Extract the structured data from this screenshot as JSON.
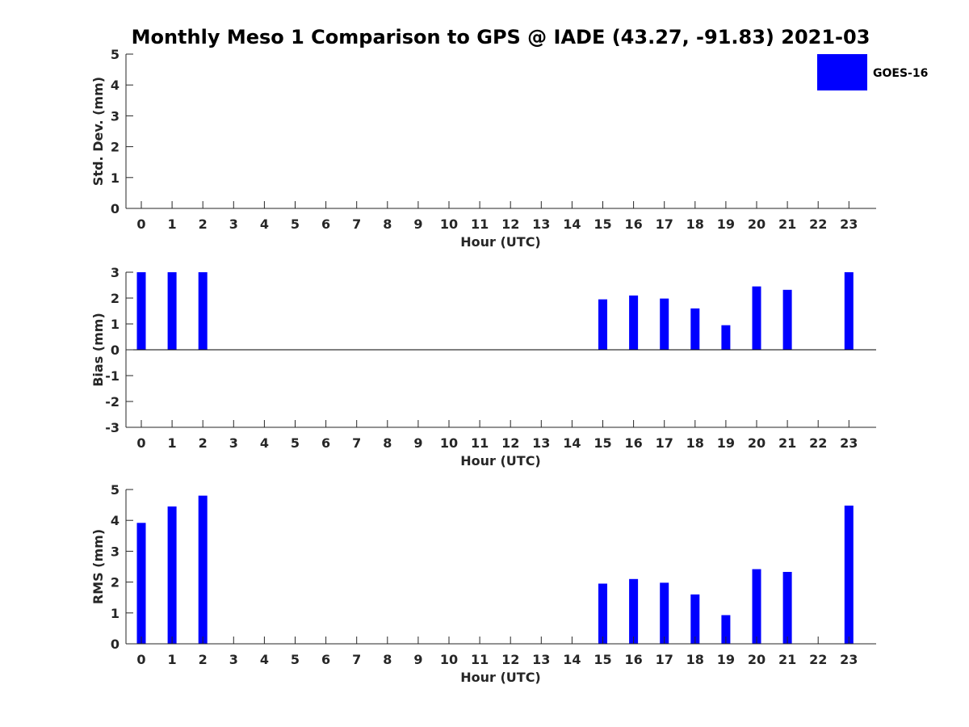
{
  "figure": {
    "title": "Monthly Meso 1 Comparison to GPS @ IADE (43.27, -91.83) 2021-03"
  },
  "legend": {
    "label": "GOES-16",
    "color": "#0000ff",
    "placement": "top-right"
  },
  "chart_data": [
    {
      "type": "bar",
      "ylabel": "Std. Dev. (mm)",
      "xlabel": "Hour (UTC)",
      "ylim": [
        0,
        5
      ],
      "yticks": [
        "0",
        "1",
        "2",
        "3",
        "4",
        "5"
      ],
      "categories": [
        "0",
        "1",
        "2",
        "3",
        "4",
        "5",
        "6",
        "7",
        "8",
        "9",
        "10",
        "11",
        "12",
        "13",
        "14",
        "15",
        "16",
        "17",
        "18",
        "19",
        "20",
        "21",
        "22",
        "23"
      ],
      "series": [
        {
          "name": "GOES-16",
          "color": "#0000ff",
          "values": [
            null,
            null,
            null,
            null,
            null,
            null,
            null,
            null,
            null,
            null,
            null,
            null,
            null,
            null,
            null,
            null,
            null,
            null,
            null,
            null,
            null,
            null,
            null,
            null
          ]
        }
      ]
    },
    {
      "type": "bar",
      "ylabel": "Bias (mm)",
      "xlabel": "Hour (UTC)",
      "ylim": [
        -3,
        3
      ],
      "yticks": [
        "-3",
        "-2",
        "-1",
        "0",
        "1",
        "2",
        "3"
      ],
      "categories": [
        "0",
        "1",
        "2",
        "3",
        "4",
        "5",
        "6",
        "7",
        "8",
        "9",
        "10",
        "11",
        "12",
        "13",
        "14",
        "15",
        "16",
        "17",
        "18",
        "19",
        "20",
        "21",
        "22",
        "23"
      ],
      "series": [
        {
          "name": "GOES-16",
          "color": "#0000ff",
          "values": [
            3.0,
            3.0,
            3.0,
            null,
            null,
            null,
            null,
            null,
            null,
            null,
            null,
            null,
            null,
            null,
            null,
            1.95,
            2.1,
            1.98,
            1.6,
            0.95,
            2.45,
            2.32,
            null,
            3.0
          ]
        }
      ]
    },
    {
      "type": "bar",
      "ylabel": "RMS (mm)",
      "xlabel": "Hour (UTC)",
      "ylim": [
        0,
        5
      ],
      "yticks": [
        "0",
        "1",
        "2",
        "3",
        "4",
        "5"
      ],
      "categories": [
        "0",
        "1",
        "2",
        "3",
        "4",
        "5",
        "6",
        "7",
        "8",
        "9",
        "10",
        "11",
        "12",
        "13",
        "14",
        "15",
        "16",
        "17",
        "18",
        "19",
        "20",
        "21",
        "22",
        "23"
      ],
      "series": [
        {
          "name": "GOES-16",
          "color": "#0000ff",
          "values": [
            3.92,
            4.45,
            4.8,
            null,
            null,
            null,
            null,
            null,
            null,
            null,
            null,
            null,
            null,
            null,
            null,
            1.95,
            2.1,
            1.98,
            1.6,
            0.93,
            2.42,
            2.33,
            null,
            4.48
          ]
        }
      ]
    }
  ]
}
